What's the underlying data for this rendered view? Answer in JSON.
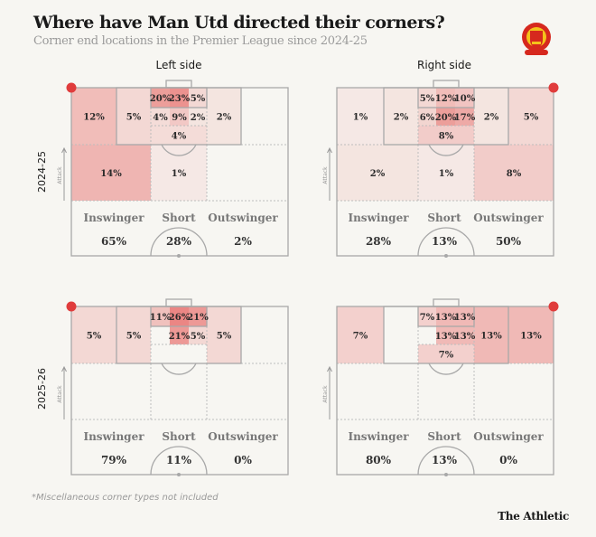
{
  "header": {
    "title": "Where have Man Utd directed their corners?",
    "subtitle": "Corner end locations in the Premier League since 2024-25"
  },
  "logo": {
    "name": "Manchester United crest",
    "text": "MANCHESTER UNITED"
  },
  "columns": [
    "Left side",
    "Right side"
  ],
  "seasons": [
    "2024-25",
    "2025-26"
  ],
  "attack_label": "Attack",
  "delivery_labels": [
    "Inswinger",
    "Short",
    "Outswinger"
  ],
  "colors": {
    "heat": "#e4514f",
    "corner_dot": "#e03c3c",
    "line": "#a8a8a8"
  },
  "panels": [
    {
      "season": "2024-25",
      "side": "Left side",
      "delivery": {
        "Inswinger": "65%",
        "Short": "28%",
        "Outswinger": "2%"
      },
      "zones": {
        "wide_near": 12,
        "box_near": 5,
        "six_near": 20,
        "six_center": 23,
        "six_far": 5,
        "front_near": 4,
        "front_center": 9,
        "front_far": 2,
        "penalty_spot": 4,
        "box_far": 2,
        "edge_near": 14,
        "edge_center": 1
      }
    },
    {
      "season": "2024-25",
      "side": "Right side",
      "delivery": {
        "Inswinger": "28%",
        "Short": "13%",
        "Outswinger": "50%"
      },
      "zones": {
        "wide_far": 1,
        "box_far": 2,
        "six_far": 5,
        "six_center": 12,
        "six_near": 10,
        "front_far": 6,
        "front_center": 20,
        "front_near": 17,
        "penalty_spot": 8,
        "box_near": 2,
        "wide_near": 5,
        "edge_far": 2,
        "edge_center": 1,
        "edge_near": 8
      }
    },
    {
      "season": "2025-26",
      "side": "Left side",
      "delivery": {
        "Inswinger": "79%",
        "Short": "11%",
        "Outswinger": "0%"
      },
      "zones": {
        "wide_near": 5,
        "box_near": 5,
        "six_near": 11,
        "six_center": 26,
        "six_far": 21,
        "front_center": 21,
        "front_far": 5,
        "box_far": 5
      }
    },
    {
      "season": "2025-26",
      "side": "Right side",
      "delivery": {
        "Inswinger": "80%",
        "Short": "13%",
        "Outswinger": "0%"
      },
      "zones": {
        "wide_far": 7,
        "six_far": 7,
        "six_center": 13,
        "six_near": 13,
        "front_center": 13,
        "front_near": 13,
        "penalty_spot": 7,
        "box_near": 13,
        "wide_near": 13
      }
    }
  ],
  "footnote": "*Miscellaneous corner types not included",
  "brand": "The Athletic"
}
